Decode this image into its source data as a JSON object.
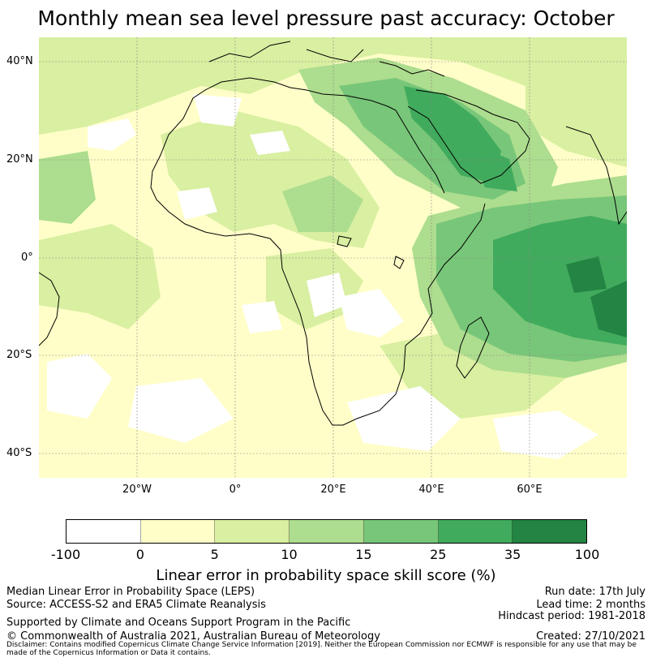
{
  "title": "Monthly mean sea level pressure past accuracy: October",
  "map": {
    "lat_labels": [
      "40°N",
      "20°N",
      "0°",
      "20°S",
      "40°S"
    ],
    "lon_labels": [
      "20°W",
      "0°",
      "20°E",
      "40°E",
      "60°E"
    ],
    "colors": {
      "white": "#ffffff",
      "c0_5": "#fffec8",
      "c5_10": "#d9efa1",
      "c10_15": "#addd8e",
      "c15_25": "#78c679",
      "c25_35": "#41ab5d",
      "c35_100": "#238443"
    }
  },
  "colorbar": {
    "ticks": [
      "-100",
      "0",
      "5",
      "10",
      "15",
      "25",
      "35",
      "100"
    ],
    "colors": [
      "#ffffff",
      "#fffec8",
      "#d9efa1",
      "#addd8e",
      "#78c679",
      "#41ab5d",
      "#238443"
    ],
    "label": "Linear error in probability space skill score (%)"
  },
  "footer": {
    "line1_left": "Median Linear Error in Probability Space (LEPS)",
    "line2_left": "Source: ACCESS-S2 and ERA5 Climate Reanalysis",
    "line3_left": "Supported by Climate and Oceans Support Program in the Pacific",
    "line4_left": "© Commonwealth of Australia 2021, Australian Bureau of Meteorology",
    "run_date": "Run date: 17th July",
    "lead_time": "Lead time: 2 months",
    "hindcast": "Hindcast period: 1981-2018",
    "created": "Created: 27/10/2021",
    "disclaimer": "Disclaimer: Contains modified Copernicus Climate Change Service Information [2019]. Neither the European Commission nor ECMWF is responsible for any use that may be made of the Copernicus Information or Data it contains."
  }
}
